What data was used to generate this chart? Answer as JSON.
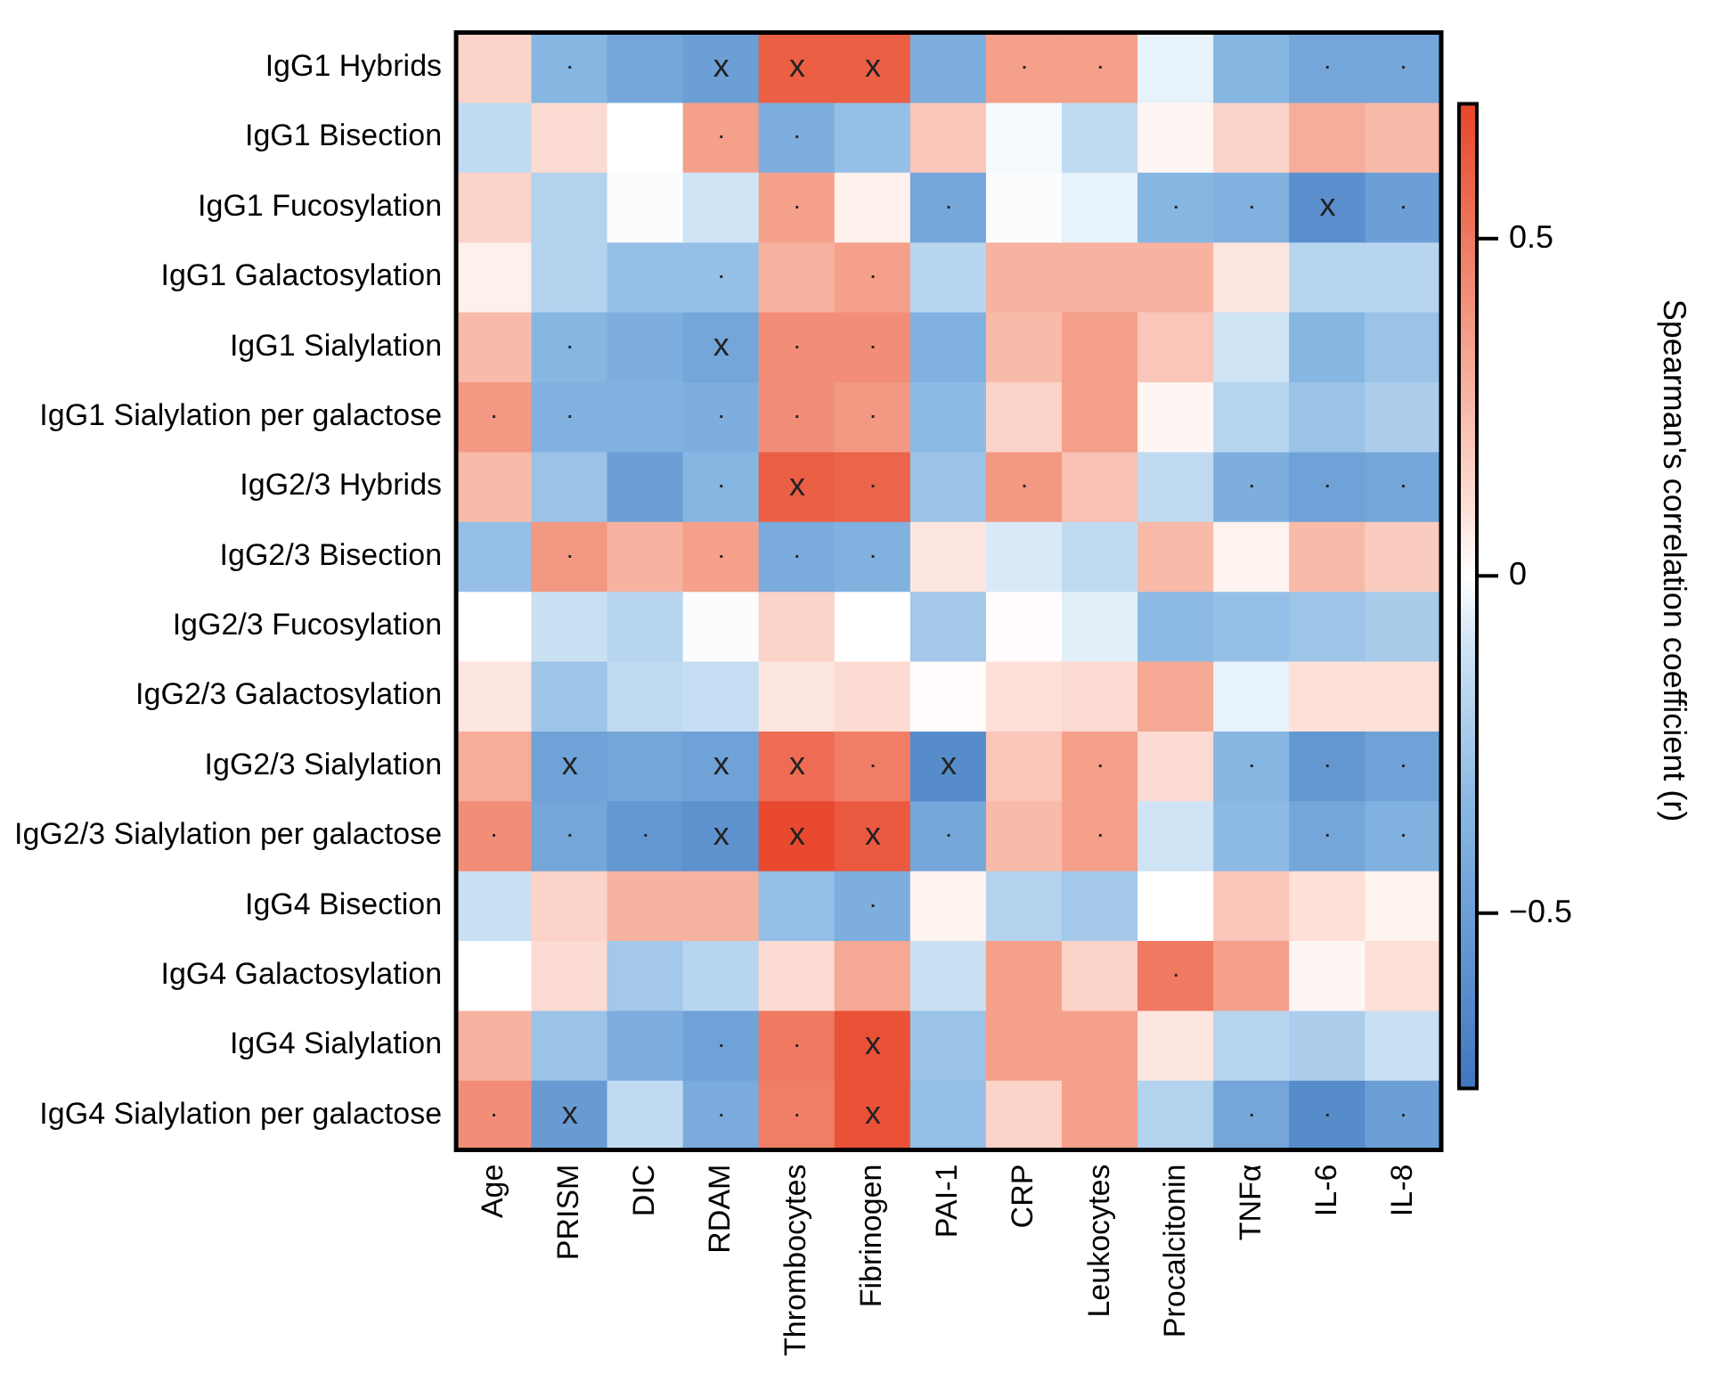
{
  "chart_data": {
    "type": "heatmap",
    "clabel": "Spearman's correlation coefficient (r)",
    "clim": [
      -0.76,
      0.7
    ],
    "cticks": [
      0.5,
      0,
      {
        "value": -0.5,
        "label": "−0.5"
      }
    ],
    "categories": [
      "Age",
      "PRISM",
      "DIC",
      "RDAM",
      "Thrombocytes",
      "Fibrinogen",
      "PAI-1",
      "CRP",
      "Leukocytes",
      "Procalcitonin",
      "TNFα",
      "IL-6",
      "IL-8"
    ],
    "y_categories": [
      "IgG1 Hybrids",
      "IgG1 Bisection",
      "IgG1 Fucosylation",
      "IgG1 Galactosylation",
      "IgG1 Sialylation",
      "IgG1 Sialylation per galactose",
      "IgG2/3 Hybrids",
      "IgG2/3 Bisection",
      "IgG2/3 Fucosylation",
      "IgG2/3 Galactosylation",
      "IgG2/3 Sialylation",
      "IgG2/3 Sialylation per galactose",
      "IgG4 Bisection",
      "IgG4 Galactosylation",
      "IgG4 Sialylation",
      "IgG4 Sialylation per galactose"
    ],
    "cells": [
      [
        0.15,
        -0.35,
        -0.45,
        -0.5,
        0.6,
        0.6,
        -0.4,
        0.35,
        0.35,
        -0.05,
        -0.35,
        -0.45,
        -0.45
      ],
      [
        -0.15,
        0.12,
        0.0,
        0.35,
        -0.4,
        -0.3,
        0.2,
        -0.02,
        -0.15,
        0.03,
        0.15,
        0.3,
        0.25
      ],
      [
        0.15,
        -0.2,
        -0.01,
        -0.1,
        0.35,
        0.05,
        -0.45,
        -0.01,
        -0.05,
        -0.35,
        -0.38,
        -0.6,
        -0.5
      ],
      [
        0.05,
        -0.2,
        -0.3,
        -0.3,
        0.28,
        0.35,
        -0.18,
        0.28,
        0.28,
        0.28,
        0.08,
        -0.18,
        -0.18
      ],
      [
        0.25,
        -0.35,
        -0.4,
        -0.45,
        0.42,
        0.42,
        -0.38,
        0.25,
        0.35,
        0.2,
        -0.1,
        -0.35,
        -0.28
      ],
      [
        0.38,
        -0.38,
        -0.38,
        -0.4,
        0.42,
        0.38,
        -0.33,
        0.15,
        0.35,
        0.03,
        -0.18,
        -0.28,
        -0.22
      ],
      [
        0.25,
        -0.28,
        -0.5,
        -0.35,
        0.6,
        0.58,
        -0.28,
        0.38,
        0.22,
        -0.15,
        -0.4,
        -0.48,
        -0.45
      ],
      [
        -0.3,
        0.38,
        0.28,
        0.35,
        -0.42,
        -0.38,
        0.08,
        -0.08,
        -0.15,
        0.25,
        0.04,
        0.25,
        0.18
      ],
      [
        0.0,
        -0.12,
        -0.18,
        -0.01,
        0.15,
        0.0,
        -0.25,
        0.01,
        -0.06,
        -0.33,
        -0.3,
        -0.27,
        -0.23
      ],
      [
        0.08,
        -0.27,
        -0.15,
        -0.13,
        0.08,
        0.12,
        0.01,
        0.1,
        0.12,
        0.32,
        -0.05,
        0.1,
        0.1
      ],
      [
        0.3,
        -0.48,
        -0.45,
        -0.48,
        0.55,
        0.48,
        -0.62,
        0.2,
        0.35,
        0.12,
        -0.35,
        -0.55,
        -0.48
      ],
      [
        0.42,
        -0.45,
        -0.55,
        -0.58,
        0.68,
        0.62,
        -0.45,
        0.25,
        0.35,
        -0.1,
        -0.33,
        -0.45,
        -0.38
      ],
      [
        -0.12,
        0.15,
        0.28,
        0.28,
        -0.3,
        -0.4,
        0.04,
        -0.2,
        -0.25,
        0.0,
        0.2,
        0.1,
        0.04
      ],
      [
        0.0,
        0.12,
        -0.25,
        -0.18,
        0.12,
        0.32,
        -0.12,
        0.35,
        0.15,
        0.5,
        0.35,
        0.03,
        0.1
      ],
      [
        0.28,
        -0.28,
        -0.4,
        -0.48,
        0.5,
        0.65,
        -0.28,
        0.35,
        0.35,
        0.08,
        -0.18,
        -0.22,
        -0.12
      ],
      [
        0.42,
        -0.52,
        -0.15,
        -0.42,
        0.48,
        0.65,
        -0.3,
        0.15,
        0.35,
        -0.2,
        -0.45,
        -0.62,
        -0.5
      ]
    ],
    "cell_labels": [
      [
        null,
        ".",
        null,
        "x",
        "x",
        "x",
        null,
        ".",
        ".",
        null,
        null,
        ".",
        "."
      ],
      [
        null,
        null,
        null,
        ".",
        ".",
        null,
        null,
        null,
        null,
        null,
        null,
        null,
        null
      ],
      [
        null,
        null,
        null,
        null,
        ".",
        null,
        ".",
        null,
        null,
        ".",
        ".",
        "x",
        "."
      ],
      [
        null,
        null,
        null,
        ".",
        null,
        ".",
        null,
        null,
        null,
        null,
        null,
        null,
        null
      ],
      [
        null,
        ".",
        null,
        "x",
        ".",
        ".",
        null,
        null,
        null,
        null,
        null,
        null,
        null
      ],
      [
        ".",
        ".",
        null,
        ".",
        ".",
        ".",
        null,
        null,
        null,
        null,
        null,
        null,
        null
      ],
      [
        null,
        null,
        null,
        ".",
        "x",
        ".",
        null,
        ".",
        null,
        null,
        ".",
        ".",
        "."
      ],
      [
        null,
        ".",
        null,
        ".",
        ".",
        ".",
        null,
        null,
        null,
        null,
        null,
        null,
        null
      ],
      [
        null,
        null,
        null,
        null,
        null,
        null,
        null,
        null,
        null,
        null,
        null,
        null,
        null
      ],
      [
        null,
        null,
        null,
        null,
        null,
        null,
        null,
        null,
        null,
        null,
        null,
        null,
        null
      ],
      [
        null,
        "x",
        null,
        "x",
        "x",
        ".",
        "x",
        null,
        ".",
        null,
        ".",
        ".",
        "."
      ],
      [
        ".",
        ".",
        ".",
        "x",
        "x",
        "x",
        ".",
        null,
        ".",
        null,
        null,
        ".",
        "."
      ],
      [
        null,
        null,
        null,
        null,
        null,
        ".",
        null,
        null,
        null,
        null,
        null,
        null,
        null
      ],
      [
        null,
        null,
        null,
        null,
        null,
        null,
        null,
        null,
        null,
        ".",
        null,
        null,
        null
      ],
      [
        null,
        null,
        null,
        ".",
        ".",
        "x",
        null,
        null,
        null,
        null,
        null,
        null,
        null
      ],
      [
        ".",
        "x",
        null,
        ".",
        ".",
        "x",
        null,
        null,
        null,
        null,
        ".",
        ".",
        "."
      ]
    ]
  }
}
